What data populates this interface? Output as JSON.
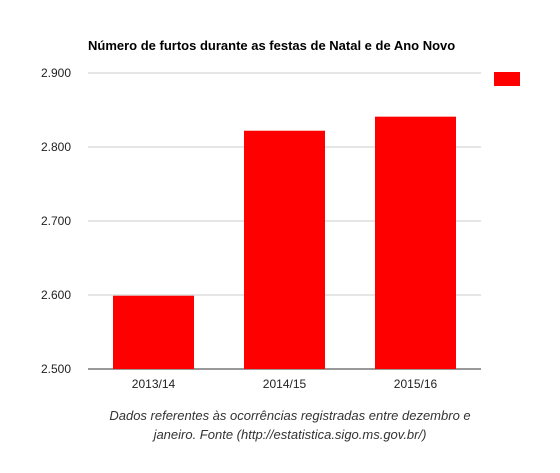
{
  "chart_data": {
    "type": "bar",
    "title": "Número de furtos durante as festas de Natal e de Ano Novo",
    "categories": [
      "2013/14",
      "2014/15",
      "2015/16"
    ],
    "values": [
      2599,
      2822,
      2841
    ],
    "ylim": [
      2500,
      2900
    ],
    "yticks": [
      2500,
      2600,
      2700,
      2800,
      2900
    ],
    "ytick_labels": [
      "2.500",
      "2.600",
      "2.700",
      "2.800",
      "2.900"
    ],
    "xlabel": "",
    "ylabel": "",
    "grid": true,
    "legend_position": "top-right",
    "series": [
      {
        "color": "#ff0000"
      }
    ]
  },
  "caption": "Dados referentes às ocorrências registradas entre dezembro e janeiro. Fonte (http://estatistica.sigo.ms.gov.br/)"
}
